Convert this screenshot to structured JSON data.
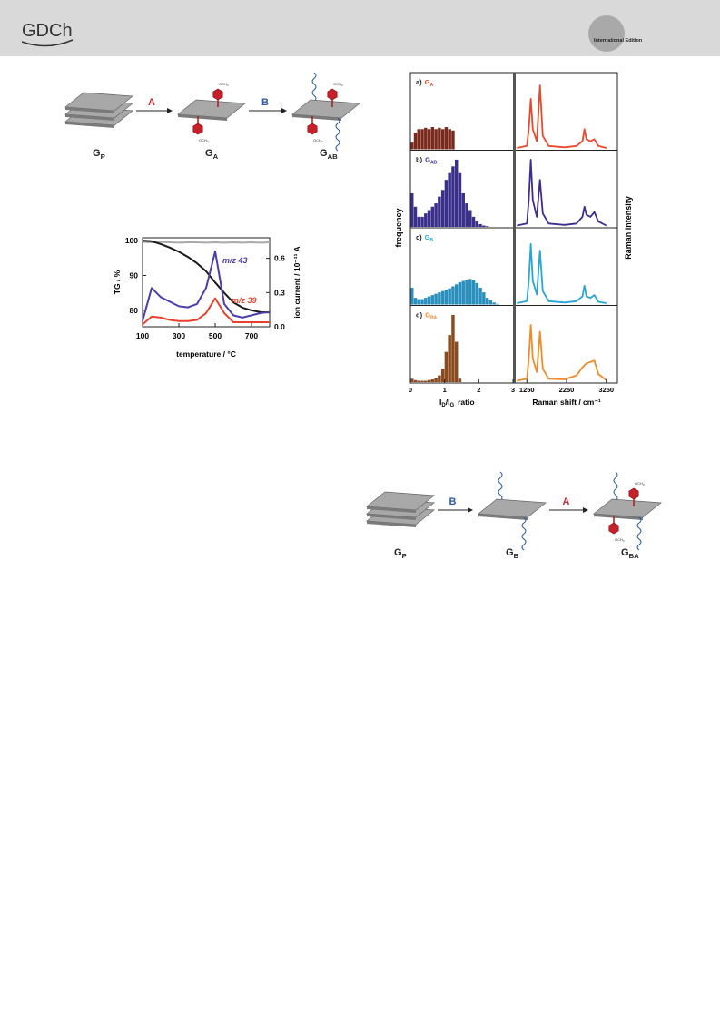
{
  "header": {
    "logo": "GDCh",
    "edition": "International Edition"
  },
  "scheme_1": {
    "nodes": [
      {
        "label": "G",
        "sub": "P"
      },
      {
        "label": "G",
        "sub": "A"
      },
      {
        "label": "G",
        "sub": "AB"
      }
    ],
    "arrows": [
      {
        "label": "A",
        "color": "#c8262d"
      },
      {
        "label": "B",
        "color": "#2a5aa0"
      }
    ],
    "group": "OCH",
    "group_sub": "3"
  },
  "scheme_2": {
    "nodes": [
      {
        "label": "G",
        "sub": "P"
      },
      {
        "label": "G",
        "sub": "B"
      },
      {
        "label": "G",
        "sub": "BA"
      }
    ],
    "arrows": [
      {
        "label": "B",
        "color": "#2a5aa0"
      },
      {
        "label": "A",
        "color": "#c8262d"
      }
    ],
    "group": "OCH",
    "group_sub": "3"
  },
  "chart_data": {
    "type": "line",
    "xlabel": "temperature / °C",
    "ylabel": "TG / %",
    "y2label": "ion current / 10⁻¹¹ A",
    "x": [
      100,
      150,
      200,
      250,
      300,
      350,
      400,
      450,
      500,
      550,
      600,
      650,
      700,
      750,
      800
    ],
    "xlim": [
      100,
      800
    ],
    "xticks": [
      100,
      300,
      500,
      700
    ],
    "ylim": [
      75.3,
      100.8
    ],
    "yticks": [
      80,
      90,
      100
    ],
    "y2lim": [
      0,
      0.78
    ],
    "y2ticks": [
      {
        "value": 0,
        "label": "0.0"
      },
      0.3,
      0.6
    ],
    "series": [
      {
        "color": "#aaaaaa",
        "values": [
          99.6,
          99.5,
          99.6,
          99.5,
          99.4,
          99.5,
          99.5,
          99.4,
          99.5,
          99.4,
          99.5,
          99.4,
          99.5,
          99.4,
          99.5
        ]
      },
      {
        "color": "#1a1a1a",
        "values": [
          100,
          99.8,
          99,
          98,
          96.8,
          95.3,
          93.5,
          91.2,
          88,
          85,
          82.3,
          80.8,
          80,
          79.5,
          79.4
        ]
      },
      {
        "name": "m/z 43",
        "color": "#4b3ea8",
        "axis": "y2",
        "values": [
          0.05,
          0.34,
          0.26,
          0.22,
          0.18,
          0.17,
          0.2,
          0.34,
          0.66,
          0.2,
          0.1,
          0.08,
          0.1,
          0.12,
          0.13
        ]
      },
      {
        "name": "m/z 39",
        "color": "#e8412b",
        "axis": "y2",
        "values": [
          0.02,
          0.09,
          0.08,
          0.06,
          0.05,
          0.05,
          0.06,
          0.12,
          0.25,
          0.12,
          0.04,
          0.04,
          0.04,
          0.04,
          0.04
        ]
      }
    ]
  },
  "raman_figure": {
    "hist_xlabel": [
      {
        "text": "I",
        "sub": "D"
      },
      {
        "text": "/I",
        "sub": "G"
      },
      {
        "text": "ratio"
      }
    ],
    "raman_xlabel": "Raman shift / cm⁻¹",
    "hist_ylabel": "frequency",
    "raman_ylabel": "Raman intensity",
    "hist_xlim": [
      0,
      3
    ],
    "hist_xticks": [
      0,
      1,
      2,
      3
    ],
    "raman_xlim": [
      970,
      3530
    ],
    "raman_xticks": [
      1250,
      2250,
      3250
    ],
    "ylim": [
      0,
      1.1
    ],
    "bins": [
      0,
      0.1,
      0.2,
      0.3,
      0.4,
      0.5,
      0.6,
      0.7,
      0.8,
      0.9,
      1,
      1.1,
      1.2,
      1.3,
      1.4,
      1.5,
      1.6,
      1.7,
      1.8,
      1.9,
      2,
      2.1,
      2.2,
      2.3,
      2.4,
      2.5,
      2.6,
      2.7,
      2.8,
      2.9,
      3
    ],
    "raman_x": [
      1000,
      1250,
      1300,
      1350,
      1400,
      1500,
      1580,
      1650,
      1800,
      2200,
      2500,
      2650,
      2700,
      2750,
      2850,
      2950,
      3050,
      3250
    ],
    "panels": [
      {
        "tag": "a)",
        "label": "G",
        "sub": "A",
        "hist_color": "#7a2a1c",
        "color": "#e8492c",
        "counts": [
          0.1,
          0.25,
          0.3,
          0.3,
          0.32,
          0.3,
          0.33,
          0.3,
          0.32,
          0.3,
          0.33,
          0.3,
          0.28,
          0,
          0,
          0,
          0,
          0,
          0,
          0,
          0,
          0,
          0,
          0,
          0,
          0,
          0,
          0,
          0,
          0
        ],
        "raman": [
          0.02,
          0.05,
          0.3,
          0.75,
          0.3,
          0.12,
          0.95,
          0.2,
          0.05,
          0.03,
          0.05,
          0.12,
          0.3,
          0.15,
          0.12,
          0.15,
          0.05,
          0.02
        ]
      },
      {
        "tag": "b)",
        "label": "G",
        "sub": "AB",
        "hist_color": "#3a2f8a",
        "color": "#3b2e90",
        "counts": [
          0.5,
          0.3,
          0.15,
          0.15,
          0.2,
          0.25,
          0.3,
          0.35,
          0.45,
          0.55,
          0.7,
          0.8,
          0.9,
          1,
          0.8,
          0.5,
          0.35,
          0.25,
          0.15,
          0.08,
          0.04,
          0.02,
          0.01,
          0,
          0,
          0,
          0,
          0,
          0,
          0
        ],
        "raman": [
          0.02,
          0.05,
          0.4,
          1,
          0.4,
          0.15,
          0.7,
          0.2,
          0.05,
          0.03,
          0.05,
          0.15,
          0.3,
          0.18,
          0.15,
          0.22,
          0.08,
          0.02
        ]
      },
      {
        "tag": "c)",
        "label": "G",
        "sub": "B",
        "hist_color": "#2a8fbd",
        "color": "#29a4d8",
        "counts": [
          0.25,
          0.1,
          0.08,
          0.08,
          0.1,
          0.12,
          0.14,
          0.16,
          0.18,
          0.2,
          0.22,
          0.24,
          0.27,
          0.3,
          0.33,
          0.35,
          0.37,
          0.38,
          0.36,
          0.32,
          0.25,
          0.18,
          0.1,
          0.06,
          0.03,
          0.01,
          0,
          0,
          0,
          0
        ],
        "raman": [
          0.02,
          0.05,
          0.35,
          0.9,
          0.35,
          0.15,
          0.8,
          0.2,
          0.05,
          0.03,
          0.05,
          0.12,
          0.28,
          0.12,
          0.1,
          0.14,
          0.04,
          0.02
        ]
      },
      {
        "tag": "d)",
        "label": "G",
        "sub": "BA",
        "hist_color": "#8b4a1e",
        "color": "#f08a2a",
        "counts": [
          0.05,
          0.03,
          0.02,
          0.02,
          0.02,
          0.03,
          0.04,
          0.06,
          0.1,
          0.2,
          0.45,
          0.7,
          1,
          0.6,
          0.05,
          0,
          0,
          0,
          0,
          0,
          0,
          0,
          0,
          0,
          0,
          0,
          0,
          0,
          0,
          0
        ],
        "raman": [
          0.02,
          0.05,
          0.35,
          0.85,
          0.35,
          0.15,
          0.75,
          0.2,
          0.05,
          0.04,
          0.1,
          0.22,
          0.25,
          0.28,
          0.3,
          0.32,
          0.12,
          0.03
        ]
      }
    ]
  }
}
